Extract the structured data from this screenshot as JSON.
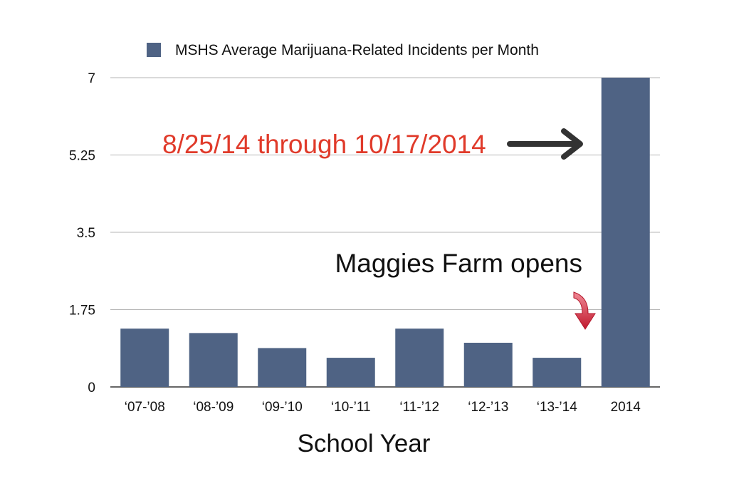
{
  "chart_data": {
    "type": "bar",
    "categories": [
      "‘07-’08",
      "‘08-’09",
      "‘09-’10",
      "‘10-’11",
      "‘11-’12",
      "‘12-’13",
      "‘13-’14",
      "2014"
    ],
    "series": [
      {
        "name": "MSHS Average Marijuana-Related Incidents per Month",
        "values": [
          1.32,
          1.22,
          0.88,
          0.66,
          1.32,
          1.0,
          0.66,
          7.0
        ]
      }
    ],
    "xlabel": "School Year",
    "ylabel": "",
    "ylim": [
      0,
      7
    ],
    "yticks": [
      "0",
      "1.75",
      "3.5",
      "5.25",
      "7"
    ],
    "grid": true,
    "legend_position": "top",
    "annotations": {
      "date_range": "8/25/14 through 10/17/2014",
      "event": "Maggies Farm opens"
    },
    "colors": {
      "bar": "#4f6384",
      "annotation_red": "#e03a2a",
      "arrow_dark": "#333333",
      "arrow_red": "#d42b3c",
      "grid": "#b5b5b5"
    }
  }
}
